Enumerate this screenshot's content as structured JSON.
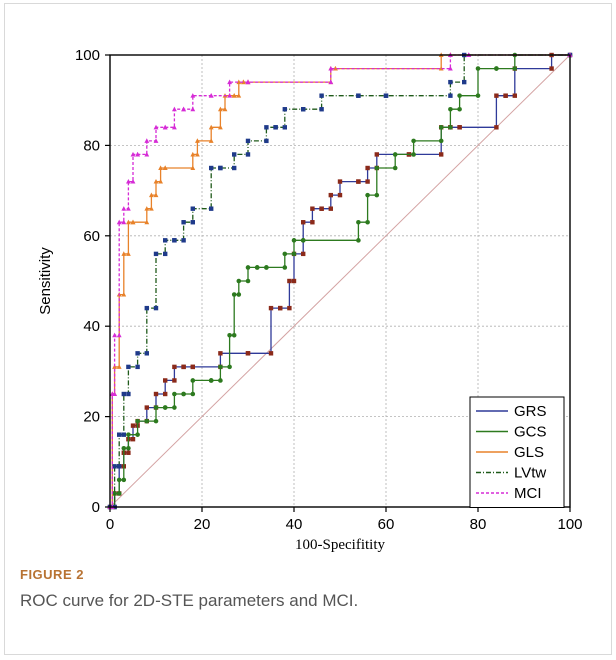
{
  "figure": {
    "label": "FIGURE 2",
    "caption": "ROC curve for 2D-STE parameters and MCI."
  },
  "chart_data": {
    "type": "line",
    "title": "",
    "xlabel": "100-Specifitity",
    "ylabel": "Sensitivity",
    "xlim": [
      0,
      100
    ],
    "ylim": [
      0,
      100
    ],
    "xticks": [
      0,
      20,
      40,
      60,
      80,
      100
    ],
    "yticks": [
      0,
      20,
      40,
      60,
      80,
      100
    ],
    "grid": true,
    "legend_position": "bottom-right",
    "reference_line": {
      "x": [
        0,
        100
      ],
      "y": [
        0,
        100
      ],
      "color": "#d4a3a3"
    },
    "series": [
      {
        "name": "GRS",
        "color": "#2f3a99",
        "marker_color": "#8b2a1a",
        "marker": "square",
        "x": [
          0,
          1,
          1,
          2,
          2,
          3,
          3,
          4,
          4,
          5,
          5,
          6,
          6,
          8,
          8,
          10,
          10,
          12,
          12,
          14,
          14,
          16,
          16,
          18,
          18,
          24,
          24,
          30,
          30,
          35,
          35,
          37,
          37,
          39,
          39,
          40,
          40,
          42,
          42,
          44,
          44,
          46,
          46,
          48,
          48,
          50,
          50,
          54,
          54,
          56,
          56,
          58,
          58,
          65,
          65,
          72,
          72,
          74,
          74,
          76,
          76,
          84,
          84,
          86,
          86,
          88,
          88,
          96,
          96,
          100
        ],
        "y": [
          0,
          0,
          3,
          3,
          9,
          9,
          12,
          12,
          15,
          15,
          18,
          18,
          19,
          19,
          22,
          22,
          25,
          25,
          28,
          28,
          31,
          31,
          31,
          31,
          31,
          31,
          34,
          34,
          34,
          34,
          44,
          44,
          44,
          44,
          50,
          50,
          56,
          56,
          63,
          63,
          66,
          66,
          66,
          66,
          69,
          69,
          72,
          72,
          72,
          72,
          75,
          75,
          78,
          78,
          78,
          78,
          84,
          84,
          84,
          84,
          84,
          84,
          91,
          91,
          91,
          91,
          97,
          97,
          100,
          100
        ]
      },
      {
        "name": "GCS",
        "color": "#2d7a1f",
        "marker_color": "#2d7a1f",
        "marker": "circle",
        "x": [
          0,
          1,
          1,
          2,
          2,
          3,
          3,
          4,
          4,
          6,
          6,
          8,
          8,
          10,
          10,
          12,
          12,
          14,
          14,
          16,
          16,
          18,
          18,
          22,
          22,
          24,
          24,
          26,
          26,
          27,
          27,
          28,
          28,
          30,
          30,
          32,
          32,
          34,
          34,
          38,
          38,
          40,
          40,
          42,
          42,
          54,
          54,
          56,
          56,
          58,
          58,
          62,
          62,
          66,
          66,
          72,
          72,
          74,
          74,
          76,
          76,
          80,
          80,
          84,
          84,
          88,
          88,
          100
        ],
        "y": [
          0,
          0,
          3,
          3,
          6,
          6,
          13,
          13,
          16,
          16,
          19,
          19,
          19,
          19,
          22,
          22,
          22,
          22,
          25,
          25,
          25,
          25,
          28,
          28,
          28,
          28,
          31,
          31,
          38,
          38,
          47,
          47,
          50,
          50,
          53,
          53,
          53,
          53,
          53,
          53,
          56,
          56,
          59,
          59,
          59,
          59,
          63,
          63,
          69,
          69,
          75,
          75,
          78,
          78,
          81,
          81,
          84,
          84,
          88,
          88,
          91,
          91,
          97,
          97,
          97,
          97,
          100,
          100
        ]
      },
      {
        "name": "GLS",
        "color": "#e8822a",
        "marker_color": "#e8822a",
        "marker": "triangle",
        "x": [
          0,
          0.5,
          0.5,
          1,
          1,
          2,
          2,
          3,
          3,
          4,
          4,
          5,
          5,
          8,
          8,
          9,
          9,
          10,
          10,
          11,
          11,
          12,
          12,
          18,
          18,
          19,
          19,
          22,
          22,
          24,
          24,
          25,
          25,
          27,
          27,
          28,
          28,
          29,
          29,
          30,
          30,
          48,
          48,
          49,
          49,
          72,
          72,
          74,
          74,
          100
        ],
        "y": [
          0,
          0,
          25,
          25,
          31,
          31,
          47,
          47,
          56,
          56,
          63,
          63,
          63,
          63,
          66,
          66,
          69,
          69,
          72,
          72,
          75,
          75,
          75,
          75,
          78,
          78,
          81,
          81,
          84,
          84,
          88,
          88,
          91,
          91,
          91,
          91,
          94,
          94,
          94,
          94,
          94,
          94,
          97,
          97,
          97,
          97,
          100,
          100,
          100,
          100
        ]
      },
      {
        "name": "LVtw",
        "color": "#1f5a1a",
        "marker_color": "#1f3a8a",
        "marker": "square",
        "x": [
          0,
          1,
          1,
          2,
          2,
          3,
          3,
          4,
          4,
          6,
          6,
          8,
          8,
          10,
          10,
          12,
          12,
          14,
          14,
          16,
          16,
          18,
          18,
          22,
          22,
          24,
          24,
          27,
          27,
          30,
          30,
          34,
          34,
          36,
          36,
          38,
          38,
          42,
          42,
          46,
          46,
          54,
          54,
          60,
          60,
          74,
          74,
          77,
          77,
          100
        ],
        "y": [
          0,
          0,
          9,
          9,
          16,
          16,
          25,
          25,
          31,
          31,
          34,
          34,
          44,
          44,
          56,
          56,
          59,
          59,
          59,
          59,
          63,
          63,
          66,
          66,
          75,
          75,
          75,
          75,
          78,
          78,
          81,
          81,
          84,
          84,
          84,
          84,
          88,
          88,
          88,
          88,
          91,
          91,
          91,
          91,
          91,
          91,
          94,
          94,
          100,
          100
        ]
      },
      {
        "name": "MCI",
        "color": "#d62bd6",
        "marker_color": "#d62bd6",
        "marker": "triangle",
        "x": [
          0,
          0.5,
          0.5,
          1,
          1,
          2,
          2,
          3,
          3,
          4,
          4,
          5,
          5,
          6,
          6,
          8,
          8,
          10,
          10,
          12,
          12,
          14,
          14,
          16,
          16,
          18,
          18,
          22,
          22,
          26,
          26,
          30,
          30,
          48,
          48,
          74,
          74,
          78,
          78,
          100
        ],
        "y": [
          0,
          0,
          25,
          25,
          38,
          38,
          63,
          63,
          66,
          66,
          72,
          72,
          78,
          78,
          78,
          78,
          81,
          81,
          84,
          84,
          84,
          84,
          88,
          88,
          88,
          88,
          91,
          91,
          91,
          91,
          94,
          94,
          94,
          94,
          97,
          97,
          100,
          100,
          100,
          100
        ]
      }
    ]
  }
}
